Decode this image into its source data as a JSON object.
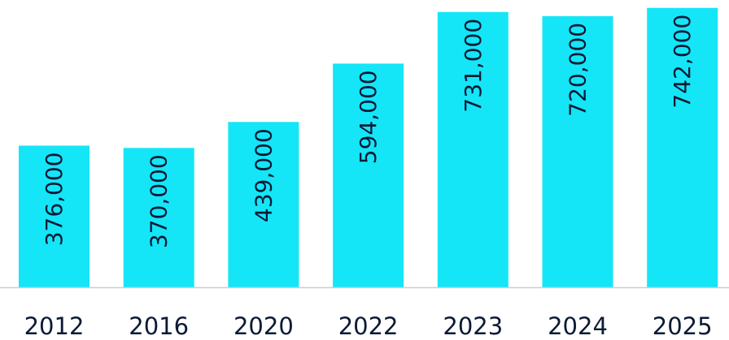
{
  "colors": {
    "bar": "#14e6f7",
    "text": "#0b1a35",
    "baseline": "#c9cdd4"
  },
  "chart_data": {
    "type": "bar",
    "categories": [
      "2012",
      "2016",
      "2020",
      "2022",
      "2023",
      "2024",
      "2025"
    ],
    "values": [
      376000,
      370000,
      439000,
      594000,
      731000,
      720000,
      742000
    ],
    "value_labels": [
      "376,000",
      "370,000",
      "439,000",
      "594,000",
      "731,000",
      "720,000",
      "742,000"
    ],
    "ylim": [
      0,
      750000
    ],
    "grid": false,
    "legend": "none",
    "title": "",
    "xlabel": "",
    "ylabel": ""
  }
}
